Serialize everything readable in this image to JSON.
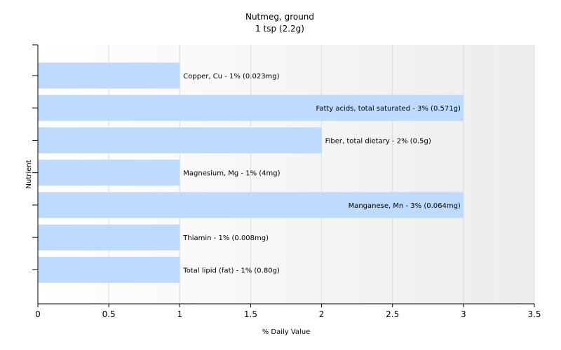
{
  "chart_data": {
    "type": "bar",
    "orientation": "horizontal",
    "title": "Nutmeg, ground",
    "subtitle": "1 tsp (2.2g)",
    "xlabel": "% Daily Value",
    "ylabel": "Nutrient",
    "xlim": [
      0,
      3.5
    ],
    "xticks": [
      "0",
      "0.5",
      "1",
      "1.5",
      "2",
      "2.5",
      "3",
      "3.5"
    ],
    "grid": true,
    "legend": "none",
    "bar_color": "#bfdaff",
    "categories": [
      "Copper, Cu",
      "Fatty acids, total saturated",
      "Fiber, total dietary",
      "Magnesium, Mg",
      "Manganese, Mn",
      "Thiamin",
      "Total lipid (fat)"
    ],
    "values": [
      1,
      3,
      2,
      1,
      3,
      1,
      1
    ],
    "labels": [
      "Copper, Cu - 1% (0.023mg)",
      "Fatty acids, total saturated - 3% (0.571g)",
      "Fiber, total dietary - 2% (0.5g)",
      "Magnesium, Mg - 1% (4mg)",
      "Manganese, Mn - 3% (0.064mg)",
      "Thiamin - 1% (0.008mg)",
      "Total lipid (fat) - 1% (0.80g)"
    ]
  }
}
